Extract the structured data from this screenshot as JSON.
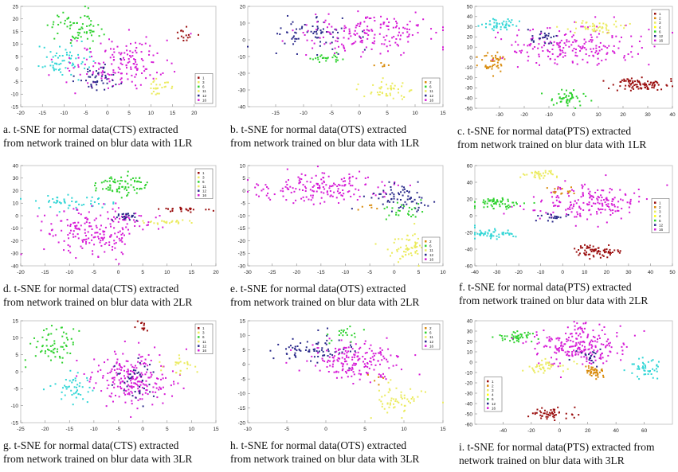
{
  "colors": {
    "1": "#9a0d0d",
    "2": "#d88a0a",
    "3": "#ebeb5e",
    "4": "#ffff00",
    "6": "#2fd22f",
    "11": "#ebeb5e",
    "12": "#2a2a8a",
    "13": "#32d6d6",
    "16": "#d61ad6"
  },
  "chart_data": [
    {
      "type": "scatter",
      "id": "a",
      "caption": "a. t-SNE for normal data(CTS) extracted\nfrom network trained on blur data with 1LR",
      "xlim": [
        -20,
        25
      ],
      "ylim": [
        -15,
        25
      ],
      "xticks": [
        "-20",
        "-15",
        "-10",
        "-5",
        "0",
        "5",
        "10",
        "15",
        "20"
      ],
      "xtick_values": [
        -20,
        -15,
        -10,
        -5,
        0,
        5,
        10,
        15,
        20
      ],
      "yticks": [
        "25",
        "20",
        "15",
        "10",
        "5",
        "0",
        "-5",
        "-10",
        "-15"
      ],
      "ytick_values": [
        25,
        20,
        15,
        10,
        5,
        0,
        -5,
        -10,
        -15
      ],
      "legend": [
        "1",
        "3",
        "6",
        "11",
        "12",
        "16"
      ],
      "legend_position": "bottom-right",
      "clusters": [
        {
          "label": "6",
          "cx": -7,
          "cy": 17,
          "sx": 3,
          "sy": 3.5,
          "n": 70
        },
        {
          "label": "13",
          "cx": -11,
          "cy": 3,
          "sx": 3,
          "sy": 3,
          "n": 60
        },
        {
          "label": "16",
          "cx": 3,
          "cy": 2,
          "sx": 6,
          "sy": 5,
          "n": 160
        },
        {
          "label": "12",
          "cx": -2,
          "cy": -3,
          "sx": 2.5,
          "sy": 3,
          "n": 45
        },
        {
          "label": "11",
          "cx": 12,
          "cy": -7,
          "sx": 1.8,
          "sy": 1.5,
          "n": 25
        },
        {
          "label": "1",
          "cx": 18,
          "cy": 13,
          "sx": 1.2,
          "sy": 1.5,
          "n": 15
        }
      ]
    },
    {
      "type": "scatter",
      "id": "b",
      "caption": "b. t-SNE for normal data(OTS) extracted\nfrom network trained on blur data with 1LR",
      "xlim": [
        -20,
        15
      ],
      "ylim": [
        -40,
        20
      ],
      "xticks": [
        "-15",
        "-10",
        "-5",
        "0",
        "5",
        "10",
        "15"
      ],
      "xtick_values": [
        -15,
        -10,
        -5,
        0,
        5,
        10,
        15
      ],
      "yticks": [
        "20",
        "10",
        "0",
        "-10",
        "-20",
        "-30",
        "-40"
      ],
      "ytick_values": [
        20,
        10,
        0,
        -10,
        -20,
        -30,
        -40
      ],
      "legend": [
        "2",
        "6",
        "11",
        "12",
        "16"
      ],
      "legend_position": "bottom-right",
      "clusters": [
        {
          "label": "12",
          "cx": -9,
          "cy": 3,
          "sx": 4,
          "sy": 5,
          "n": 70
        },
        {
          "label": "16",
          "cx": 2,
          "cy": 4,
          "sx": 6,
          "sy": 6,
          "n": 170
        },
        {
          "label": "6",
          "cx": -5,
          "cy": -11,
          "sx": 2,
          "sy": 1.5,
          "n": 25
        },
        {
          "label": "11",
          "cx": 5,
          "cy": -30,
          "sx": 2,
          "sy": 3,
          "n": 45
        },
        {
          "label": "2",
          "cx": 4,
          "cy": -15,
          "sx": 1,
          "sy": 1,
          "n": 6
        }
      ]
    },
    {
      "type": "scatter",
      "id": "c",
      "caption": "c. t-SNE for normal data(PTS) extracted\nfrom network trained on blur data with 1LR",
      "xlim": [
        -40,
        40
      ],
      "ylim": [
        -50,
        50
      ],
      "xticks": [
        "-30",
        "-20",
        "-10",
        "0",
        "10",
        "20",
        "30",
        "40"
      ],
      "xtick_values": [
        -30,
        -20,
        -10,
        0,
        10,
        20,
        30,
        40
      ],
      "yticks": [
        "50",
        "40",
        "30",
        "20",
        "10",
        "0",
        "-10",
        "-20",
        "-30",
        "-40",
        "-50"
      ],
      "ytick_values": [
        50,
        40,
        30,
        20,
        10,
        0,
        -10,
        -20,
        -30,
        -40,
        -50
      ],
      "legend": [
        "1",
        "2",
        "3",
        "4",
        "6",
        "12",
        "16"
      ],
      "legend_position": "top-right",
      "clusters": [
        {
          "label": "13",
          "cx": -30,
          "cy": 33,
          "sx": 3,
          "sy": 3,
          "n": 45
        },
        {
          "label": "2",
          "cx": -33,
          "cy": -5,
          "sx": 3,
          "sy": 5,
          "n": 45
        },
        {
          "label": "1",
          "cx": 27,
          "cy": -26,
          "sx": 6,
          "sy": 3,
          "n": 90
        },
        {
          "label": "6",
          "cx": -3,
          "cy": -40,
          "sx": 4,
          "sy": 4,
          "n": 50
        },
        {
          "label": "16",
          "cx": 0,
          "cy": 10,
          "sx": 14,
          "sy": 10,
          "n": 200
        },
        {
          "label": "3",
          "cx": 8,
          "cy": 30,
          "sx": 6,
          "sy": 3,
          "n": 50
        },
        {
          "label": "12",
          "cx": -12,
          "cy": 20,
          "sx": 3,
          "sy": 3,
          "n": 25
        }
      ]
    },
    {
      "type": "scatter",
      "id": "d",
      "caption": "d. t-SNE for normal data(CTS) extracted\nfrom network trained on blur data with 2LR",
      "xlim": [
        -20,
        20
      ],
      "ylim": [
        -40,
        40
      ],
      "xticks": [
        "-20",
        "-15",
        "-10",
        "-5",
        "0",
        "5",
        "10",
        "15",
        "20"
      ],
      "xtick_values": [
        -20,
        -15,
        -10,
        -5,
        0,
        5,
        10,
        15,
        20
      ],
      "yticks": [
        "40",
        "30",
        "20",
        "10",
        "0",
        "-10",
        "-20",
        "-30",
        "-40"
      ],
      "ytick_values": [
        40,
        30,
        20,
        10,
        0,
        -10,
        -20,
        -30,
        -40
      ],
      "legend": [
        "1",
        "3",
        "6",
        "11",
        "12",
        "16"
      ],
      "legend_position": "top-right",
      "clusters": [
        {
          "label": "6",
          "cx": 1,
          "cy": 25,
          "sx": 3,
          "sy": 4,
          "n": 80
        },
        {
          "label": "13",
          "cx": -9,
          "cy": 11,
          "sx": 4,
          "sy": 3,
          "n": 50
        },
        {
          "label": "16",
          "cx": -4,
          "cy": -12,
          "sx": 5,
          "sy": 10,
          "n": 200
        },
        {
          "label": "12",
          "cx": 1,
          "cy": 0,
          "sx": 1.5,
          "sy": 2,
          "n": 25
        },
        {
          "label": "1",
          "cx": 14,
          "cy": 5,
          "sx": 3,
          "sy": 1,
          "n": 25
        },
        {
          "label": "11",
          "cx": 10,
          "cy": -5,
          "sx": 3,
          "sy": 1,
          "n": 25
        }
      ]
    },
    {
      "type": "scatter",
      "id": "e",
      "caption": "e. t-SNE for normal data(OTS) extracted\nfrom network trained on blur data with 2LR",
      "xlim": [
        -30,
        10
      ],
      "ylim": [
        -30,
        10
      ],
      "xticks": [
        "-30",
        "-25",
        "-20",
        "-15",
        "-10",
        "-5",
        "0",
        "5",
        "10"
      ],
      "xtick_values": [
        -30,
        -25,
        -20,
        -15,
        -10,
        -5,
        0,
        5,
        10
      ],
      "yticks": [
        "10",
        "5",
        "0",
        "-5",
        "-10",
        "-15",
        "-20",
        "-25",
        "-30"
      ],
      "ytick_values": [
        10,
        5,
        0,
        -5,
        -10,
        -15,
        -20,
        -25,
        -30
      ],
      "legend": [
        "2",
        "6",
        "11",
        "12",
        "16"
      ],
      "legend_position": "bottom-right",
      "clusters": [
        {
          "label": "16",
          "cx": -15,
          "cy": 1,
          "sx": 7,
          "sy": 3,
          "n": 170
        },
        {
          "label": "12",
          "cx": 1,
          "cy": -3,
          "sx": 3,
          "sy": 3,
          "n": 70
        },
        {
          "label": "6",
          "cx": 2,
          "cy": -8,
          "sx": 2.5,
          "sy": 2,
          "n": 25
        },
        {
          "label": "11",
          "cx": 3,
          "cy": -23,
          "sx": 2,
          "sy": 3,
          "n": 60
        },
        {
          "label": "2",
          "cx": -5,
          "cy": -7,
          "sx": 1,
          "sy": 1,
          "n": 6
        }
      ]
    },
    {
      "type": "scatter",
      "id": "f",
      "caption": "f. t-SNE for normal data(PTS) extracted\nfrom network trained on blur data with 2LR",
      "xlim": [
        -40,
        50
      ],
      "ylim": [
        -60,
        60
      ],
      "xticks": [
        "-40",
        "-30",
        "-20",
        "-10",
        "0",
        "10",
        "20",
        "30",
        "40",
        "50"
      ],
      "xtick_values": [
        -40,
        -30,
        -20,
        -10,
        0,
        10,
        20,
        30,
        40,
        50
      ],
      "yticks": [
        "60",
        "40",
        "20",
        "0",
        "-20",
        "-40",
        "-60"
      ],
      "ytick_values": [
        60,
        40,
        20,
        0,
        -20,
        -40,
        -60
      ],
      "legend": [
        "1",
        "2",
        "3",
        "4",
        "6",
        "12",
        "16"
      ],
      "legend_position": "right",
      "clusters": [
        {
          "label": "3",
          "cx": -10,
          "cy": 50,
          "sx": 4,
          "sy": 3,
          "n": 35
        },
        {
          "label": "6",
          "cx": -30,
          "cy": 15,
          "sx": 6,
          "sy": 3,
          "n": 60
        },
        {
          "label": "16",
          "cx": 12,
          "cy": 15,
          "sx": 12,
          "sy": 10,
          "n": 180
        },
        {
          "label": "13",
          "cx": -32,
          "cy": -22,
          "sx": 6,
          "sy": 3,
          "n": 55
        },
        {
          "label": "1",
          "cx": 15,
          "cy": -42,
          "sx": 6,
          "sy": 4,
          "n": 70
        },
        {
          "label": "12",
          "cx": -5,
          "cy": -2,
          "sx": 3,
          "sy": 3,
          "n": 20
        },
        {
          "label": "2",
          "cx": 0,
          "cy": 30,
          "sx": 3,
          "sy": 3,
          "n": 15
        }
      ]
    },
    {
      "type": "scatter",
      "id": "g",
      "caption": "g. t-SNE for normal data(CTS) extracted\nfrom network trained on blur data with 3LR",
      "xlim": [
        -25,
        15
      ],
      "ylim": [
        -15,
        15
      ],
      "xticks": [
        "-25",
        "-20",
        "-15",
        "-10",
        "-5",
        "0",
        "5",
        "10",
        "15"
      ],
      "xtick_values": [
        -25,
        -20,
        -15,
        -10,
        -5,
        0,
        5,
        10,
        15
      ],
      "yticks": [
        "15",
        "10",
        "5",
        "0",
        "-5",
        "-10",
        "-15"
      ],
      "ytick_values": [
        15,
        10,
        5,
        0,
        -5,
        -10,
        -15
      ],
      "legend": [
        "1",
        "3",
        "6",
        "11",
        "12",
        "16"
      ],
      "legend_position": "top-right",
      "clusters": [
        {
          "label": "6",
          "cx": -18,
          "cy": 8,
          "sx": 2.5,
          "sy": 2.5,
          "n": 65
        },
        {
          "label": "13",
          "cx": -14,
          "cy": -5,
          "sx": 2,
          "sy": 2,
          "n": 45
        },
        {
          "label": "16",
          "cx": -2,
          "cy": -2,
          "sx": 4,
          "sy": 4,
          "n": 220
        },
        {
          "label": "12",
          "cx": -2,
          "cy": -3,
          "sx": 2,
          "sy": 3,
          "n": 40
        },
        {
          "label": "11",
          "cx": 8,
          "cy": 2,
          "sx": 1.5,
          "sy": 1.5,
          "n": 25
        },
        {
          "label": "1",
          "cx": 0,
          "cy": 13,
          "sx": 0.8,
          "sy": 1,
          "n": 12
        }
      ]
    },
    {
      "type": "scatter",
      "id": "h",
      "caption": "h. t-SNE for normal data(OTS) extracted\nfrom network trained on blur data with 3LR",
      "xlim": [
        -10,
        15
      ],
      "ylim": [
        -20,
        15
      ],
      "xticks": [
        "-10",
        "-5",
        "0",
        "5",
        "10",
        "15"
      ],
      "xtick_values": [
        -10,
        -5,
        0,
        5,
        10,
        15
      ],
      "yticks": [
        "15",
        "10",
        "5",
        "0",
        "-5",
        "-10",
        "-15",
        "-20"
      ],
      "ytick_values": [
        15,
        10,
        5,
        0,
        -5,
        -10,
        -15,
        -20
      ],
      "legend": [
        "2",
        "6",
        "11",
        "12",
        "16"
      ],
      "legend_position": "top-right",
      "clusters": [
        {
          "label": "12",
          "cx": -2,
          "cy": 5,
          "sx": 2.5,
          "sy": 2.5,
          "n": 70
        },
        {
          "label": "16",
          "cx": 4,
          "cy": 1,
          "sx": 3,
          "sy": 3,
          "n": 180
        },
        {
          "label": "6",
          "cx": 2,
          "cy": 11,
          "sx": 1.5,
          "sy": 1.5,
          "n": 20
        },
        {
          "label": "11",
          "cx": 9,
          "cy": -12,
          "sx": 1.5,
          "sy": 2.5,
          "n": 55
        },
        {
          "label": "2",
          "cx": 6,
          "cy": -5,
          "sx": 1,
          "sy": 1,
          "n": 5
        }
      ]
    },
    {
      "type": "scatter",
      "id": "i",
      "caption": "i. t-SNE for normal data(PTS) extracted from\nnetwork trained on blur data with 3LR",
      "xlim": [
        -60,
        80
      ],
      "ylim": [
        -60,
        40
      ],
      "xticks": [
        "-40",
        "-20",
        "0",
        "20",
        "40",
        "60"
      ],
      "xtick_values": [
        -40,
        -20,
        0,
        20,
        40,
        60
      ],
      "yticks": [
        "40",
        "30",
        "20",
        "10",
        "0",
        "-10",
        "-20",
        "-30",
        "-40",
        "-50",
        "-60"
      ],
      "ytick_values": [
        40,
        30,
        20,
        10,
        0,
        -10,
        -20,
        -30,
        -40,
        -50,
        -60
      ],
      "legend": [
        "1",
        "2",
        "3",
        "4",
        "6",
        "12",
        "16"
      ],
      "legend_position": "bottom-left",
      "clusters": [
        {
          "label": "6",
          "cx": -30,
          "cy": 25,
          "sx": 6,
          "sy": 3,
          "n": 45
        },
        {
          "label": "16",
          "cx": 15,
          "cy": 15,
          "sx": 14,
          "sy": 10,
          "n": 220
        },
        {
          "label": "13",
          "cx": 60,
          "cy": -5,
          "sx": 6,
          "sy": 5,
          "n": 45
        },
        {
          "label": "2",
          "cx": 25,
          "cy": -10,
          "sx": 5,
          "sy": 3,
          "n": 45
        },
        {
          "label": "1",
          "cx": -5,
          "cy": -50,
          "sx": 8,
          "sy": 3,
          "n": 50
        },
        {
          "label": "3",
          "cx": -10,
          "cy": -5,
          "sx": 8,
          "sy": 3,
          "n": 40
        },
        {
          "label": "12",
          "cx": 20,
          "cy": 5,
          "sx": 5,
          "sy": 5,
          "n": 20
        }
      ]
    }
  ]
}
